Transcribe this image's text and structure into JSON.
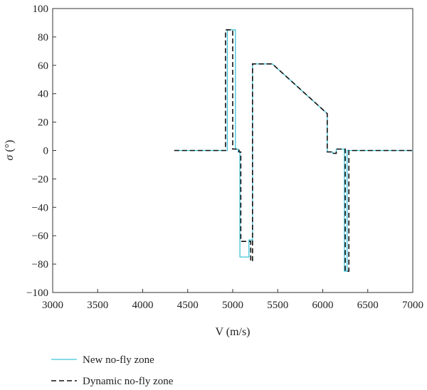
{
  "chart_data": {
    "type": "line",
    "title": "",
    "xlabel": "V (m/s)",
    "ylabel_symbol": "σ",
    "ylabel_unit": " (°)",
    "xlim": [
      3000,
      7000
    ],
    "ylim": [
      -100,
      100
    ],
    "x_ticks": [
      3000,
      3500,
      4000,
      4500,
      5000,
      5500,
      6000,
      6500,
      7000
    ],
    "y_ticks": [
      -100,
      -80,
      -60,
      -40,
      -20,
      0,
      20,
      40,
      60,
      80,
      100
    ],
    "x_tick_labels": [
      "3000",
      "3500",
      "4000",
      "4500",
      "5000",
      "5500",
      "6000",
      "6500",
      "7000"
    ],
    "y_tick_labels": [
      "−100",
      "−80",
      "−60",
      "−40",
      "−20",
      "0",
      "20",
      "40",
      "60",
      "80",
      "100"
    ],
    "grid": false,
    "legend_position": "bottom-left",
    "series": [
      {
        "name": "New no-fly zone",
        "color": "#3fc3d9",
        "style": "solid",
        "x": [
          4350,
          4940,
          4940,
          5030,
          5030,
          5060,
          5060,
          5080,
          5080,
          5180,
          5180,
          5220,
          5220,
          5440,
          6050,
          6050,
          6110,
          6110,
          6150,
          6150,
          6240,
          6240,
          6270,
          6270,
          7000
        ],
        "y": [
          0,
          0,
          85,
          85,
          1,
          1,
          -1,
          -1,
          -75,
          -75,
          -63,
          -63,
          61,
          61,
          26,
          -1,
          -1,
          -2,
          -2,
          1,
          1,
          -85,
          -85,
          0,
          0
        ]
      },
      {
        "name": "Dynamic no-fly zone",
        "color": "#111111",
        "style": "dashed",
        "x": [
          4350,
          4920,
          4920,
          5000,
          5000,
          5070,
          5070,
          5090,
          5090,
          5200,
          5200,
          5220,
          5220,
          5440,
          6050,
          6050,
          6110,
          6110,
          6150,
          6150,
          6250,
          6250,
          6290,
          6290,
          7000
        ],
        "y": [
          0,
          0,
          85,
          85,
          1,
          1,
          -1,
          -1,
          -64,
          -64,
          -78,
          -78,
          61,
          61,
          26,
          -1,
          -1,
          -2,
          -2,
          1,
          1,
          -85,
          -85,
          0,
          0
        ]
      }
    ]
  }
}
